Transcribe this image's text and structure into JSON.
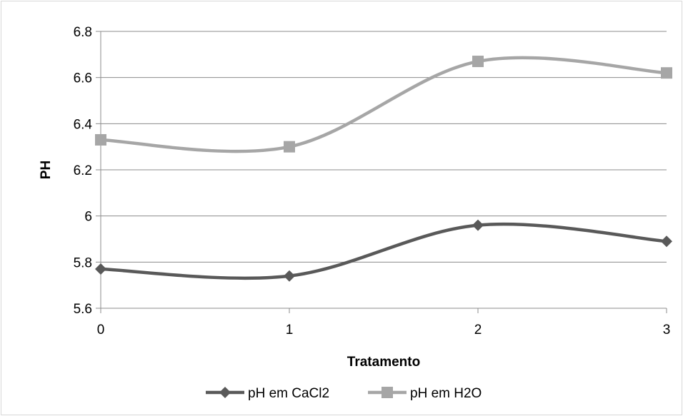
{
  "chart_data": {
    "type": "line",
    "title": "",
    "xlabel": "Tratamento",
    "ylabel": "PH",
    "x": [
      0,
      1,
      2,
      3
    ],
    "x_ticks": [
      "0",
      "1",
      "2",
      "3"
    ],
    "y_ticks": [
      "5.6",
      "5.8",
      "6",
      "6.2",
      "6.4",
      "6.6",
      "6.8"
    ],
    "ylim": [
      5.6,
      6.8
    ],
    "xlim": [
      0,
      3
    ],
    "grid": "horizontal",
    "smooth": true,
    "legend_position": "bottom",
    "series": [
      {
        "name": "pH em CaCl2",
        "values": [
          5.77,
          5.74,
          5.96,
          5.89
        ],
        "color": "#595959",
        "marker": "diamond"
      },
      {
        "name": "pH em H2O",
        "values": [
          6.33,
          6.3,
          6.67,
          6.62
        ],
        "color": "#a6a6a6",
        "marker": "square"
      }
    ]
  }
}
